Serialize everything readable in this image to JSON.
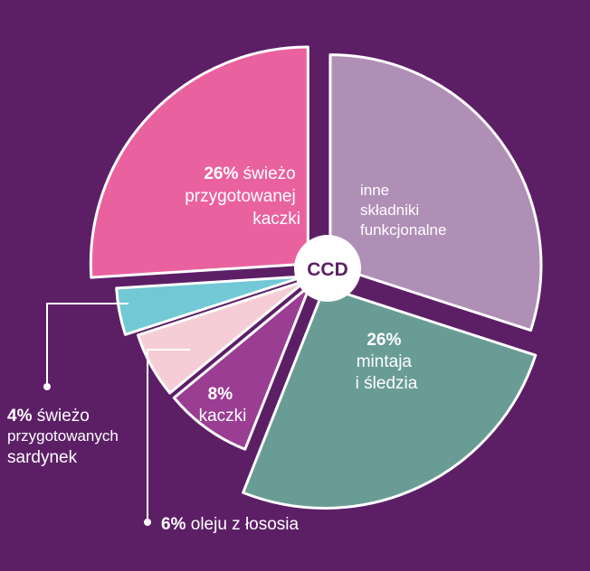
{
  "chart_data": {
    "type": "pie",
    "title": "",
    "center_label": "CCD",
    "slices": [
      {
        "id": "inne",
        "pct_text": "",
        "label_lines": [
          "inne",
          "składniki",
          "funkcjonalne"
        ],
        "value": 30,
        "color": "#b08fb6"
      },
      {
        "id": "mintaja",
        "pct_text": "26%",
        "label_lines": [
          "mintaja",
          "i śledzia"
        ],
        "value": 26,
        "color": "#6a9c96"
      },
      {
        "id": "kaczki-8",
        "pct_text": "8%",
        "label_lines": [
          "kaczki"
        ],
        "value": 8,
        "color": "#9a3d93"
      },
      {
        "id": "olej",
        "pct_text": "6%",
        "label_lines": [
          "oleju z łososia"
        ],
        "value": 6,
        "color": "#f6cdd6"
      },
      {
        "id": "sardynki",
        "pct_text": "4%",
        "label_lines": [
          "świeżo",
          "przygotowanych",
          "sardynek"
        ],
        "value": 4,
        "color": "#72c8d4"
      },
      {
        "id": "kaczka-26",
        "pct_text": "26%",
        "label_lines": [
          "świeżo",
          "przygotowanej",
          "kaczki"
        ],
        "value": 26,
        "color": "#e9629f"
      }
    ]
  }
}
